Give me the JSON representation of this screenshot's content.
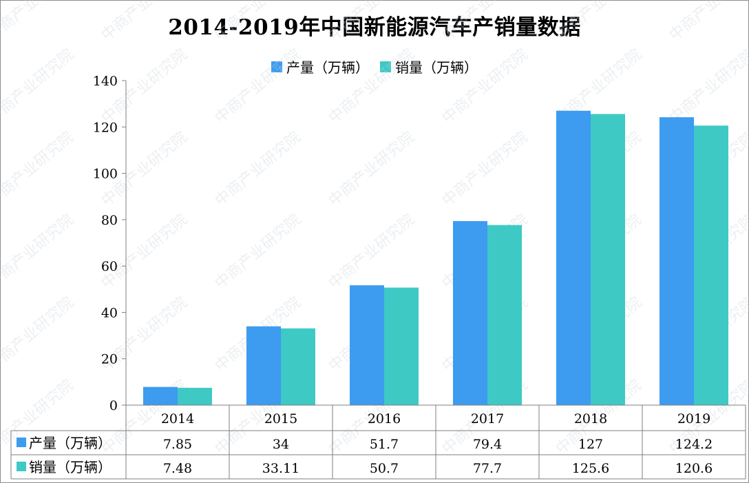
{
  "chart_data": {
    "type": "bar",
    "title": "2014-2019年中国新能源汽车产销量数据",
    "categories": [
      "2014",
      "2015",
      "2016",
      "2017",
      "2018",
      "2019"
    ],
    "series": [
      {
        "name": "产量（万辆）",
        "color": "#3d9bf0",
        "values": [
          7.85,
          34,
          51.7,
          79.4,
          127,
          124.2
        ]
      },
      {
        "name": "销量（万辆）",
        "color": "#3ec9c5",
        "values": [
          7.48,
          33.11,
          50.7,
          77.7,
          125.6,
          120.6
        ]
      }
    ],
    "table_values": [
      [
        "7.85",
        "34",
        "51.7",
        "79.4",
        "127",
        "124.2"
      ],
      [
        "7.48",
        "33.11",
        "50.7",
        "77.7",
        "125.6",
        "120.6"
      ]
    ],
    "ylim": [
      0,
      140
    ],
    "yticks": [
      "0",
      "20",
      "40",
      "60",
      "80",
      "100",
      "120",
      "140"
    ],
    "legend_position": "top-center",
    "data_table": true,
    "grid": false
  },
  "watermark_text": "中商产业研究院"
}
